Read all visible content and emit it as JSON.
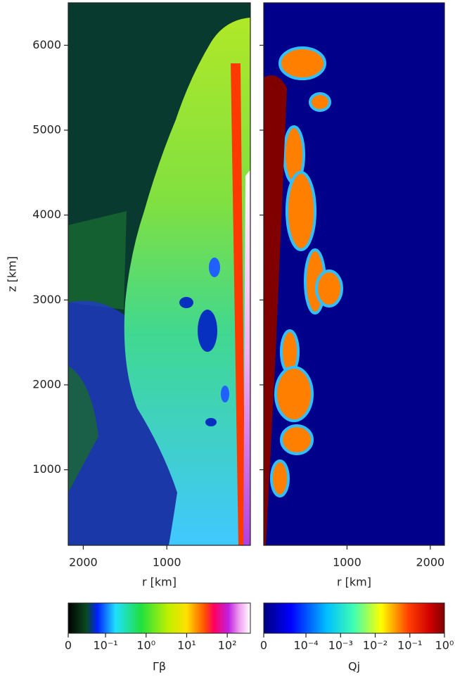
{
  "chart_data": [
    {
      "type": "heatmap",
      "xlabel": "r [km]",
      "ylabel": "z [km]",
      "xlim": [
        2180,
        0
      ],
      "xticks": [
        2000,
        1000
      ],
      "ylim": [
        110,
        6500
      ],
      "yticks": [
        1000,
        2000,
        3000,
        4000,
        5000,
        6000
      ],
      "colorbar": {
        "label": "Γβ",
        "scale": "symlog",
        "clim": [
          0,
          371
        ],
        "linthresh": 0.1,
        "linscale": 0.92,
        "ticks": [
          0,
          {
            "value": 0.1,
            "label": "10⁻¹"
          },
          {
            "value": 1,
            "label": "10⁰"
          },
          {
            "value": 10,
            "label": "10¹"
          },
          {
            "value": 100,
            "label": "10²"
          }
        ]
      }
    },
    {
      "type": "heatmap",
      "xlabel": "r [km]",
      "sharey": true,
      "xlim": [
        0,
        2170
      ],
      "xticks": [
        1000,
        2000
      ],
      "colorbar": {
        "label": "Qj",
        "scale": "symlog",
        "clim": [
          0,
          1
        ],
        "linthresh": 0.0001,
        "linscale": 1.22,
        "ticks": [
          0,
          {
            "value": 0.0001,
            "label": "10⁻⁴"
          },
          {
            "value": 0.001,
            "label": "10⁻³"
          },
          {
            "value": 0.01,
            "label": "10⁻²"
          },
          {
            "value": 0.1,
            "label": "10⁻¹"
          },
          {
            "value": 1,
            "label": "10⁰"
          }
        ]
      }
    }
  ]
}
